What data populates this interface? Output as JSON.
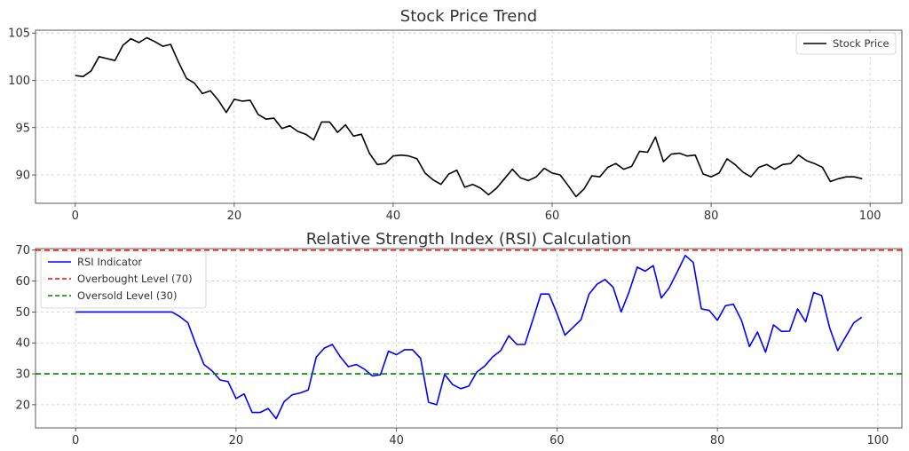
{
  "chart_data": [
    {
      "type": "line",
      "title": "Stock Price Trend",
      "xlim": [
        -5,
        104
      ],
      "ylim": [
        87,
        105.3
      ],
      "xticks": [
        0,
        20,
        40,
        60,
        80,
        100
      ],
      "yticks": [
        90,
        95,
        100,
        105
      ],
      "grid": true,
      "legend_placement": "top-right",
      "series": [
        {
          "name": "Stock Price",
          "color": "#000000",
          "x": [
            0,
            1,
            2,
            3,
            4,
            5,
            6,
            7,
            8,
            9,
            10,
            11,
            12,
            13,
            14,
            15,
            16,
            17,
            18,
            19,
            20,
            21,
            22,
            23,
            24,
            25,
            26,
            27,
            28,
            29,
            30,
            31,
            32,
            33,
            34,
            35,
            36,
            37,
            38,
            39,
            40,
            41,
            42,
            43,
            44,
            45,
            46,
            47,
            48,
            49,
            50,
            51,
            52,
            53,
            54,
            55,
            56,
            57,
            58,
            59,
            60,
            61,
            62,
            63,
            64,
            65,
            66,
            67,
            68,
            69,
            70,
            71,
            72,
            73,
            74,
            75,
            76,
            77,
            78,
            79,
            80,
            81,
            82,
            83,
            84,
            85,
            86,
            87,
            88,
            89,
            90,
            91,
            92,
            93,
            94,
            95,
            96,
            97,
            98,
            99
          ],
          "values": [
            100.5,
            100.4,
            101.0,
            102.5,
            102.3,
            102.1,
            103.7,
            104.4,
            104.0,
            104.5,
            104.1,
            103.6,
            103.8,
            101.9,
            100.2,
            99.7,
            98.6,
            98.9,
            97.9,
            96.6,
            98.0,
            97.8,
            97.9,
            96.4,
            95.9,
            96.0,
            94.9,
            95.2,
            94.6,
            94.3,
            93.7,
            95.6,
            95.6,
            94.5,
            95.3,
            94.1,
            94.3,
            92.3,
            91.1,
            91.2,
            92.0,
            92.1,
            92.0,
            91.7,
            90.2,
            89.5,
            89.0,
            90.1,
            90.5,
            88.7,
            89.0,
            88.6,
            87.9,
            88.6,
            89.6,
            90.6,
            89.7,
            89.4,
            89.8,
            90.7,
            90.2,
            90.0,
            88.9,
            87.7,
            88.5,
            89.9,
            89.8,
            90.8,
            91.2,
            90.6,
            90.9,
            92.5,
            92.4,
            94.0,
            91.4,
            92.2,
            92.3,
            92.0,
            92.1,
            90.1,
            89.8,
            90.2,
            91.7,
            91.1,
            90.3,
            89.8,
            90.8,
            91.1,
            90.6,
            91.1,
            91.2,
            92.1,
            91.5,
            91.2,
            90.8,
            89.3,
            89.6,
            89.8,
            89.8,
            89.6
          ]
        }
      ]
    },
    {
      "type": "line",
      "title": "Relative Strength Index (RSI) Calculation",
      "xlim": [
        -5,
        103
      ],
      "ylim": [
        12.5,
        70.5
      ],
      "xticks": [
        0,
        20,
        40,
        60,
        80,
        100
      ],
      "yticks": [
        20,
        30,
        40,
        50,
        60,
        70
      ],
      "grid": true,
      "legend_placement": "top-left",
      "series": [
        {
          "name": "RSI Indicator",
          "color": "#0000ff",
          "x": [
            0,
            1,
            2,
            3,
            4,
            5,
            6,
            7,
            8,
            9,
            10,
            11,
            12,
            13,
            14,
            15,
            16,
            17,
            18,
            19,
            20,
            21,
            22,
            23,
            24,
            25,
            26,
            27,
            28,
            29,
            30,
            31,
            32,
            33,
            34,
            35,
            36,
            37,
            38,
            39,
            40,
            41,
            42,
            43,
            44,
            45,
            46,
            47,
            48,
            49,
            50,
            51,
            52,
            53,
            54,
            55,
            56,
            57,
            58,
            59,
            60,
            61,
            62,
            63,
            64,
            65,
            66,
            67,
            68,
            69,
            70,
            71,
            72,
            73,
            74,
            75,
            76,
            77,
            78,
            79,
            80,
            81,
            82,
            83,
            84,
            85,
            86,
            87,
            88,
            89,
            90,
            91,
            92,
            93,
            94,
            95,
            96,
            97,
            98
          ],
          "values": [
            50,
            50,
            50,
            50,
            50,
            50,
            50,
            50,
            50,
            50,
            50,
            50,
            50,
            48.5,
            46.5,
            39.5,
            33,
            31,
            28,
            27.5,
            22,
            23.5,
            17.5,
            17.5,
            18.8,
            15.5,
            21,
            23.2,
            23.8,
            24.8,
            35.4,
            38.3,
            39.5,
            35.5,
            32.3,
            33,
            31.5,
            29.3,
            29.7,
            37.3,
            36.2,
            37.8,
            37.8,
            35,
            20.8,
            20,
            29.8,
            26.5,
            25.2,
            26,
            30.5,
            32.5,
            35.5,
            37.5,
            42.3,
            39.5,
            39.5,
            47.5,
            55.8,
            55.8,
            49.5,
            42.5,
            45,
            47.5,
            55.8,
            59,
            60.5,
            58,
            50,
            56.5,
            64.5,
            63.2,
            65,
            54.5,
            57.8,
            63,
            68.3,
            66,
            51,
            50.5,
            47.3,
            52,
            52.5,
            47.3,
            38.8,
            43.5,
            37,
            45.8,
            43.7,
            43.8,
            51,
            46.8,
            56.3,
            55.3,
            44.8,
            37.5,
            42,
            46.5,
            48.3
          ]
        },
        {
          "name": "Overbought Level (70)",
          "color": "#ff0000",
          "dashed": true,
          "level": 70
        },
        {
          "name": "Oversold Level (30)",
          "color": "#008000",
          "dashed": true,
          "level": 30
        }
      ]
    }
  ]
}
